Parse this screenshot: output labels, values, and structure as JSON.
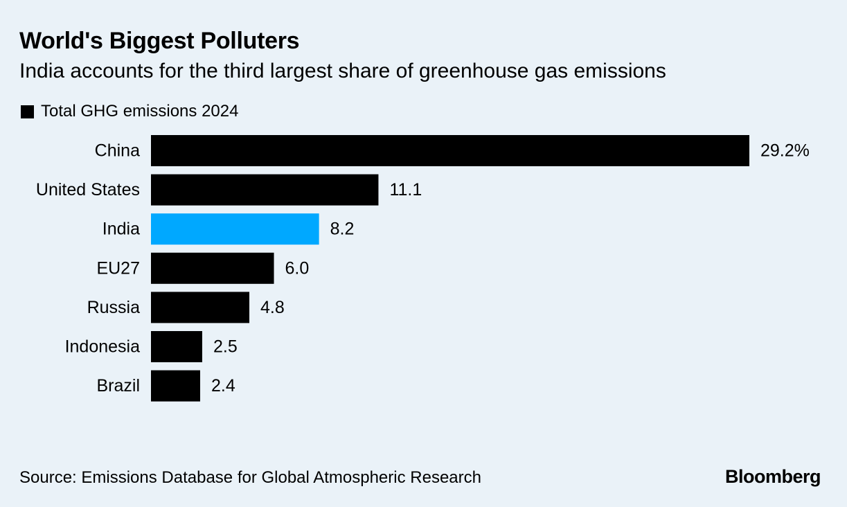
{
  "chart_data": {
    "type": "bar",
    "orientation": "horizontal",
    "title": "World's Biggest Polluters",
    "subtitle": "India accounts for the third largest share of greenhouse gas emissions",
    "legend": [
      {
        "label": "Total GHG emissions 2024",
        "color": "#000000"
      }
    ],
    "categories": [
      "China",
      "United States",
      "India",
      "EU27",
      "Russia",
      "Indonesia",
      "Brazil"
    ],
    "values": [
      29.2,
      11.1,
      8.2,
      6.0,
      4.8,
      2.5,
      2.4
    ],
    "value_labels": [
      "29.2%",
      "11.1",
      "8.2",
      "6.0",
      "4.8",
      "2.5",
      "2.4"
    ],
    "highlight_category": "India",
    "colors": {
      "default_bar": "#000000",
      "highlight_bar": "#00a8ff",
      "background": "#eaf2f8"
    },
    "xlim": [
      0,
      29.2
    ],
    "unit": "%",
    "source": "Source: Emissions Database for Global Atmospheric Research"
  },
  "branding": {
    "name": "Bloomberg"
  }
}
